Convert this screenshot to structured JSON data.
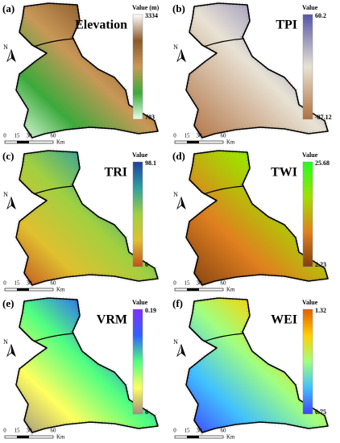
{
  "panels": [
    {
      "label": "(a)",
      "title": "Elevation",
      "legend": {
        "title": "Value (m)",
        "max": "3334",
        "min": "703",
        "colors": [
          "#ffffff",
          "#8b5a2b",
          "#c89858",
          "#3caa3c",
          "#e8ffe8"
        ]
      },
      "north": "N",
      "scale": {
        "ticks": [
          "0",
          "15",
          "30",
          "60"
        ],
        "unit": "Km"
      }
    },
    {
      "label": "(b)",
      "title": "TPI",
      "legend": {
        "title": "Value",
        "max": "60.2",
        "min": "-87.12",
        "colors": [
          "#5656a8",
          "#e8e2d4",
          "#b07040"
        ]
      },
      "north": "N",
      "scale": {
        "ticks": [
          "0",
          "15",
          "30",
          "60"
        ],
        "unit": "Km"
      }
    },
    {
      "label": "(c)",
      "title": "TRI",
      "legend": {
        "title": "Value",
        "max": "98.1",
        "min": "0",
        "colors": [
          "#2040a0",
          "#30a0a0",
          "#a0d040",
          "#e0c030",
          "#c05020"
        ]
      },
      "north": "N",
      "scale": {
        "ticks": [
          "0",
          "15",
          "30",
          "60"
        ],
        "unit": "Km"
      }
    },
    {
      "label": "(d)",
      "title": "TWI",
      "legend": {
        "title": "Value",
        "max": "25.68",
        "min": "2.23",
        "colors": [
          "#20ff20",
          "#a0e000",
          "#e08020",
          "#804010"
        ]
      },
      "north": "N",
      "scale": {
        "ticks": [
          "0",
          "15",
          "30",
          "60"
        ],
        "unit": "Km"
      }
    },
    {
      "label": "(e)",
      "title": "VRM",
      "legend": {
        "title": "Value",
        "max": "0.19",
        "min": "0",
        "colors": [
          "#8030ff",
          "#3060ff",
          "#50ff80",
          "#ffff60",
          "#a09080"
        ]
      },
      "north": "N",
      "scale": {
        "ticks": [
          "0",
          "15",
          "30",
          "60"
        ],
        "unit": "Km"
      }
    },
    {
      "label": "(f)",
      "title": "WEI",
      "legend": {
        "title": "Value",
        "max": "1.32",
        "min": "0.75",
        "colors": [
          "#e06000",
          "#ffd000",
          "#a0ff80",
          "#40c0ff",
          "#4040ff"
        ]
      },
      "north": "N",
      "scale": {
        "ticks": [
          "0",
          "15",
          "30",
          "60"
        ],
        "unit": "Km"
      }
    }
  ]
}
